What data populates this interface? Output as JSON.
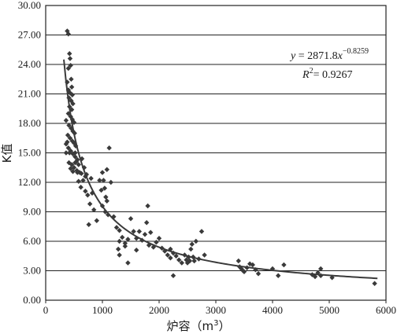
{
  "chart_data": {
    "type": "scatter",
    "xlabel": "炉容（m",
    "xlabel_sup": "3",
    "xlabel_close": "）",
    "ylabel": "K值",
    "xlim": [
      0,
      6000
    ],
    "ylim": [
      0,
      30
    ],
    "x_ticks": [
      "0",
      "1000",
      "2000",
      "3000",
      "4000",
      "5000",
      "6000"
    ],
    "y_ticks": [
      "0.00",
      "3.00",
      "6.00",
      "9.00",
      "12.00",
      "15.00",
      "18.00",
      "21.00",
      "24.00",
      "27.00",
      "30.00"
    ],
    "x_tick_values": [
      0,
      1000,
      2000,
      3000,
      4000,
      5000,
      6000
    ],
    "y_tick_values": [
      0,
      3,
      6,
      9,
      12,
      15,
      18,
      21,
      24,
      27,
      30
    ],
    "grid": "horizontal",
    "equation": {
      "y_var": "y",
      "eq_text": " = 2871.8",
      "x_var": "x",
      "exponent": "−0.8259",
      "r2_var": "R",
      "r2_sup": "2",
      "r2_text": "= 0.9267"
    },
    "trendline": {
      "a": 2871.8,
      "b": -0.8259,
      "x_range": [
        320,
        5850
      ]
    },
    "points": [
      [
        380,
        27.4
      ],
      [
        400,
        27.1
      ],
      [
        420,
        25.1
      ],
      [
        430,
        24.6
      ],
      [
        440,
        23.9
      ],
      [
        400,
        23.6
      ],
      [
        450,
        22.5
      ],
      [
        380,
        22.2
      ],
      [
        460,
        21.7
      ],
      [
        400,
        21.4
      ],
      [
        430,
        21.1
      ],
      [
        470,
        20.9
      ],
      [
        410,
        20.6
      ],
      [
        450,
        20.3
      ],
      [
        480,
        20.0
      ],
      [
        420,
        19.7
      ],
      [
        460,
        19.4
      ],
      [
        400,
        19.0
      ],
      [
        440,
        18.7
      ],
      [
        470,
        18.4
      ],
      [
        500,
        18.1
      ],
      [
        360,
        18.3
      ],
      [
        410,
        17.8
      ],
      [
        450,
        17.5
      ],
      [
        480,
        17.2
      ],
      [
        510,
        17.0
      ],
      [
        390,
        16.8
      ],
      [
        430,
        16.5
      ],
      [
        470,
        16.2
      ],
      [
        500,
        16.0
      ],
      [
        530,
        15.7
      ],
      [
        360,
        15.9
      ],
      [
        400,
        15.5
      ],
      [
        440,
        15.2
      ],
      [
        480,
        14.9
      ],
      [
        520,
        14.6
      ],
      [
        560,
        14.3
      ],
      [
        410,
        14.0
      ],
      [
        460,
        13.8
      ],
      [
        500,
        13.5
      ],
      [
        550,
        13.2
      ],
      [
        600,
        13.0
      ],
      [
        360,
        15.0
      ],
      [
        380,
        16.1
      ],
      [
        420,
        15.0
      ],
      [
        440,
        13.4
      ],
      [
        480,
        13.1
      ],
      [
        520,
        14.0
      ],
      [
        580,
        13.8
      ],
      [
        630,
        12.9
      ],
      [
        660,
        12.2
      ],
      [
        700,
        11.1
      ],
      [
        740,
        10.7
      ],
      [
        720,
        12.8
      ],
      [
        800,
        12.4
      ],
      [
        820,
        10.9
      ],
      [
        780,
        9.8
      ],
      [
        850,
        9.2
      ],
      [
        760,
        7.7
      ],
      [
        900,
        8.1
      ],
      [
        950,
        12.2
      ],
      [
        980,
        11.2
      ],
      [
        1000,
        13.0
      ],
      [
        1020,
        12.2
      ],
      [
        1040,
        11.4
      ],
      [
        1060,
        10.5
      ],
      [
        1080,
        10.1
      ],
      [
        1000,
        9.6
      ],
      [
        1050,
        9.0
      ],
      [
        1100,
        8.7
      ],
      [
        1080,
        13.3
      ],
      [
        1120,
        15.5
      ],
      [
        1150,
        12.0
      ],
      [
        1200,
        8.5
      ],
      [
        1250,
        7.4
      ],
      [
        1300,
        7.1
      ],
      [
        1350,
        6.4
      ],
      [
        1300,
        6.0
      ],
      [
        1280,
        5.2
      ],
      [
        1400,
        5.8
      ],
      [
        1450,
        6.2
      ],
      [
        1500,
        8.3
      ],
      [
        1550,
        7.0
      ],
      [
        1600,
        6.3
      ],
      [
        1650,
        7.0
      ],
      [
        1700,
        6.1
      ],
      [
        1750,
        6.7
      ],
      [
        1800,
        9.6
      ],
      [
        1780,
        7.9
      ],
      [
        1850,
        6.9
      ],
      [
        1820,
        5.6
      ],
      [
        1900,
        5.4
      ],
      [
        1950,
        5.9
      ],
      [
        2000,
        6.3
      ],
      [
        2050,
        5.3
      ],
      [
        2100,
        5.0
      ],
      [
        2150,
        4.6
      ],
      [
        2200,
        4.3
      ],
      [
        2250,
        4.8
      ],
      [
        2300,
        4.5
      ],
      [
        2350,
        4.1
      ],
      [
        2400,
        3.8
      ],
      [
        2450,
        4.6
      ],
      [
        2480,
        4.1
      ],
      [
        2500,
        3.8
      ],
      [
        2520,
        4.4
      ],
      [
        2540,
        4.0
      ],
      [
        2560,
        5.2
      ],
      [
        2580,
        5.7
      ],
      [
        2600,
        4.4
      ],
      [
        2620,
        4.0
      ],
      [
        2650,
        6.0
      ],
      [
        2700,
        4.2
      ],
      [
        2750,
        7.0
      ],
      [
        2800,
        4.6
      ],
      [
        2250,
        2.5
      ],
      [
        2200,
        5.2
      ],
      [
        1600,
        5.1
      ],
      [
        1400,
        5.5
      ],
      [
        1300,
        4.6
      ],
      [
        1450,
        3.8
      ],
      [
        3400,
        4.0
      ],
      [
        3420,
        3.4
      ],
      [
        3450,
        3.2
      ],
      [
        3480,
        3.0
      ],
      [
        3500,
        2.9
      ],
      [
        3550,
        3.3
      ],
      [
        3600,
        3.7
      ],
      [
        3650,
        3.6
      ],
      [
        3700,
        3.1
      ],
      [
        3750,
        2.7
      ],
      [
        4000,
        3.2
      ],
      [
        4100,
        2.5
      ],
      [
        4200,
        3.6
      ],
      [
        4700,
        2.6
      ],
      [
        4750,
        2.4
      ],
      [
        4800,
        2.8
      ],
      [
        4850,
        2.5
      ],
      [
        4850,
        3.2
      ],
      [
        5050,
        2.3
      ],
      [
        5800,
        1.7
      ],
      [
        520,
        15.0
      ],
      [
        540,
        14.1
      ],
      [
        560,
        13.0
      ],
      [
        580,
        12.1
      ],
      [
        620,
        11.5
      ],
      [
        640,
        14.4
      ],
      [
        680,
        13.5
      ],
      [
        700,
        12.6
      ]
    ]
  }
}
